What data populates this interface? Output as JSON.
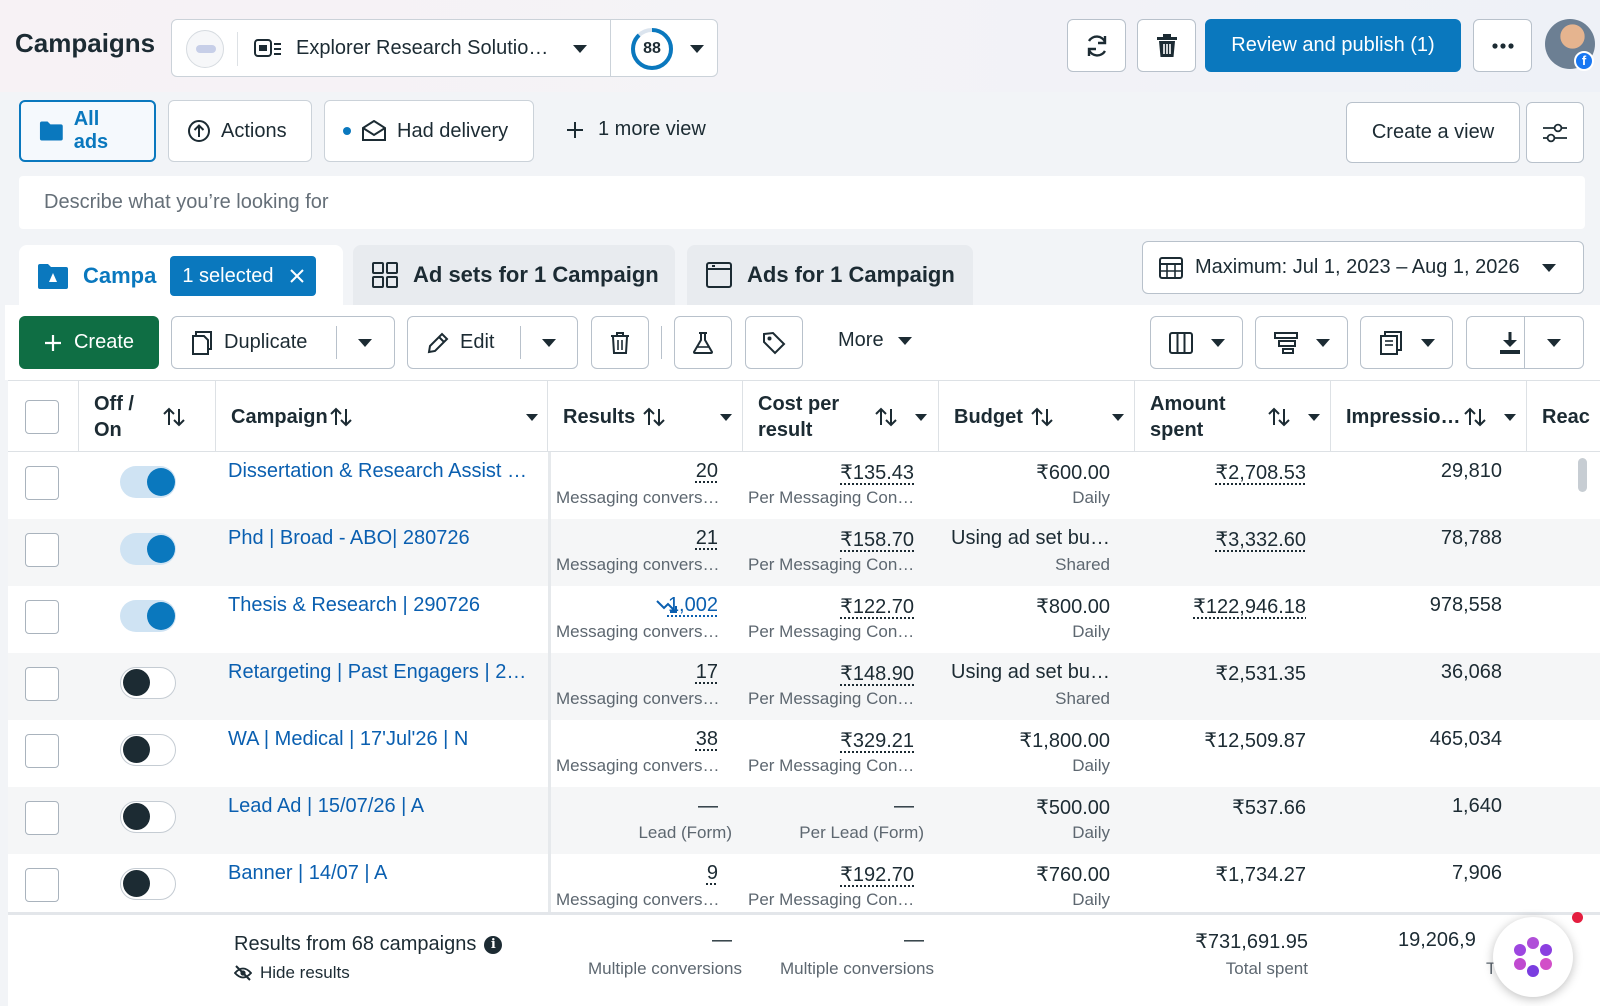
{
  "header": {
    "title": "Campaigns",
    "account_name": "Explorer Research Solutio…",
    "score": "88",
    "publish_label": "Review and publish (1)"
  },
  "views": {
    "tabs": [
      {
        "label": "All ads",
        "icon": "folder-icon"
      },
      {
        "label": "Actions",
        "icon": "upload-icon"
      },
      {
        "label": "Had delivery",
        "icon": "envelope-icon"
      }
    ],
    "more_views": "1 more view",
    "create_view": "Create a view"
  },
  "search": {
    "placeholder": "Describe what you’re looking for"
  },
  "levels": {
    "campaigns_label": "Campa",
    "selected_label": "1 selected",
    "adsets_label": "Ad sets for 1 Campaign",
    "ads_label": "Ads for 1 Campaign",
    "date_range": "Maximum: Jul 1, 2023 – Aug 1, 2026"
  },
  "toolbar": {
    "create": "Create",
    "duplicate": "Duplicate",
    "edit": "Edit",
    "more": "More"
  },
  "columns": {
    "off_on": "Off / On",
    "campaign": "Campaign",
    "results": "Results",
    "cost_per_result": "Cost per result",
    "budget": "Budget",
    "amount_spent": "Amount spent",
    "impressions": "Impressio…",
    "reach": "Reac"
  },
  "rows": [
    {
      "on": true,
      "name": "Dissertation & Research Assist …",
      "results": "20",
      "results_sub": "Messaging convers…",
      "cost": "₹135.43",
      "cost_sub": "Per Messaging Con…",
      "budget": "₹600.00",
      "budget_sub": "Daily",
      "spent": "₹2,708.53",
      "impressions": "29,810"
    },
    {
      "on": true,
      "name": "Phd | Broad - ABO| 280726",
      "results": "21",
      "results_sub": "Messaging convers…",
      "cost": "₹158.70",
      "cost_sub": "Per Messaging Con…",
      "budget": "Using ad set bu…",
      "budget_sub": "Shared",
      "spent": "₹3,332.60",
      "impressions": "78,788"
    },
    {
      "on": true,
      "name": "Thesis & Research | 290726",
      "results": "1,002",
      "results_sub": "Messaging convers…",
      "cost": "₹122.70",
      "cost_sub": "Per Messaging Con…",
      "budget": "₹800.00",
      "budget_sub": "Daily",
      "spent": "₹122,946.18",
      "impressions": "978,558"
    },
    {
      "on": false,
      "name": "Retargeting | Past Engagers | 2…",
      "results": "17",
      "results_sub": "Messaging convers…",
      "cost": "₹148.90",
      "cost_sub": "Per Messaging Con…",
      "budget": "Using ad set bu…",
      "budget_sub": "Shared",
      "spent": "₹2,531.35",
      "impressions": "36,068"
    },
    {
      "on": false,
      "name": "WA | Medical | 17'Jul'26 | N",
      "results": "38",
      "results_sub": "Messaging convers…",
      "cost": "₹329.21",
      "cost_sub": "Per Messaging Con…",
      "budget": "₹1,800.00",
      "budget_sub": "Daily",
      "spent": "₹12,509.87",
      "impressions": "465,034"
    },
    {
      "on": false,
      "name": "Lead Ad | 15/07/26 | A",
      "results": "—",
      "results_sub": "Lead (Form)",
      "cost": "—",
      "cost_sub": "Per Lead (Form)",
      "budget": "₹500.00",
      "budget_sub": "Daily",
      "spent": "₹537.66",
      "impressions": "1,640"
    },
    {
      "on": false,
      "name": "Banner | 14/07 | A",
      "results": "9",
      "results_sub": "Messaging convers…",
      "cost": "₹192.70",
      "cost_sub": "Per Messaging Con…",
      "budget": "₹760.00",
      "budget_sub": "Daily",
      "spent": "₹1,734.27",
      "impressions": "7,906"
    }
  ],
  "footer": {
    "title": "Results from 68 campaigns",
    "hide_results": "Hide results",
    "results": "—",
    "results_sub": "Multiple conversions",
    "cost": "—",
    "cost_sub": "Multiple conversions",
    "spent": "₹731,691.95",
    "spent_sub": "Total spent",
    "impressions": "19,206,9",
    "impressions_sub": "T"
  }
}
